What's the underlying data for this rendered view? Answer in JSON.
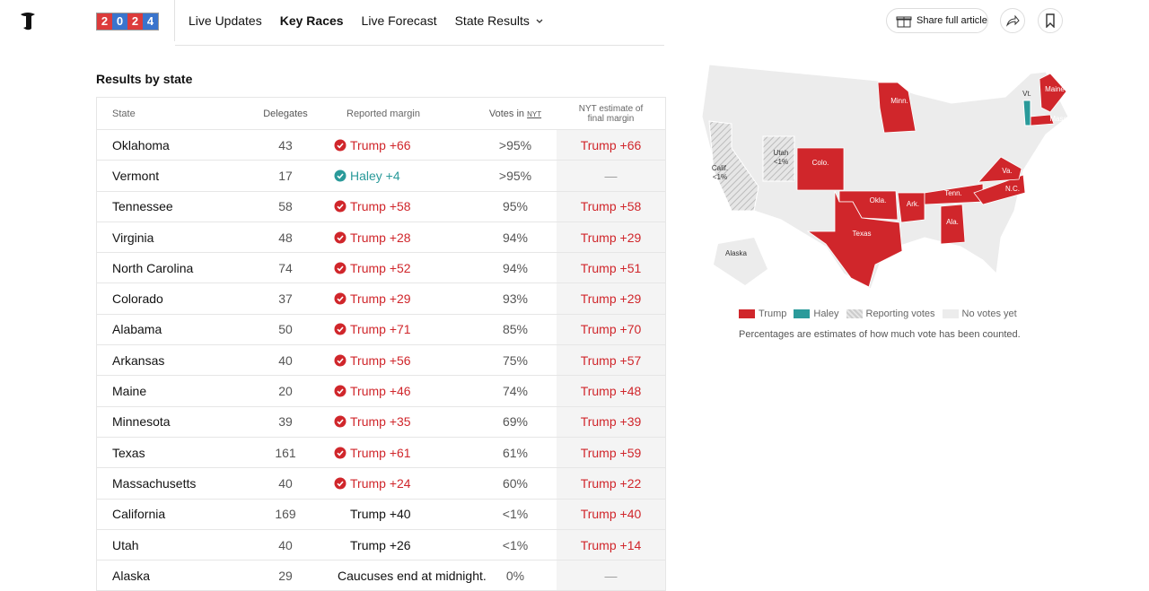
{
  "nav": {
    "year": [
      "2",
      "0",
      "2",
      "4"
    ],
    "links": [
      "Live Updates",
      "Key Races",
      "Live Forecast",
      "State Results"
    ],
    "share": "Share full article"
  },
  "section_title": "Results by state",
  "table": {
    "headers": {
      "state": "State",
      "delegates": "Delegates",
      "margin": "Reported margin",
      "votes": "Votes in",
      "votes_source": "NYT",
      "estimate": "NYT estimate of final margin"
    },
    "rows": [
      {
        "state": "Oklahoma",
        "delegates": "43",
        "margin": "Trump +66",
        "called": true,
        "leader": "trump",
        "votes": ">95%",
        "estimate": "Trump +66",
        "estimate_leader": "trump"
      },
      {
        "state": "Vermont",
        "delegates": "17",
        "margin": "Haley +4",
        "called": true,
        "leader": "haley",
        "votes": ">95%",
        "estimate": "—",
        "estimate_leader": null
      },
      {
        "state": "Tennessee",
        "delegates": "58",
        "margin": "Trump +58",
        "called": true,
        "leader": "trump",
        "votes": "95%",
        "estimate": "Trump +58",
        "estimate_leader": "trump"
      },
      {
        "state": "Virginia",
        "delegates": "48",
        "margin": "Trump +28",
        "called": true,
        "leader": "trump",
        "votes": "94%",
        "estimate": "Trump +29",
        "estimate_leader": "trump"
      },
      {
        "state": "North Carolina",
        "delegates": "74",
        "margin": "Trump +52",
        "called": true,
        "leader": "trump",
        "votes": "94%",
        "estimate": "Trump +51",
        "estimate_leader": "trump"
      },
      {
        "state": "Colorado",
        "delegates": "37",
        "margin": "Trump +29",
        "called": true,
        "leader": "trump",
        "votes": "93%",
        "estimate": "Trump +29",
        "estimate_leader": "trump"
      },
      {
        "state": "Alabama",
        "delegates": "50",
        "margin": "Trump +71",
        "called": true,
        "leader": "trump",
        "votes": "85%",
        "estimate": "Trump +70",
        "estimate_leader": "trump"
      },
      {
        "state": "Arkansas",
        "delegates": "40",
        "margin": "Trump +56",
        "called": true,
        "leader": "trump",
        "votes": "75%",
        "estimate": "Trump +57",
        "estimate_leader": "trump"
      },
      {
        "state": "Maine",
        "delegates": "20",
        "margin": "Trump +46",
        "called": true,
        "leader": "trump",
        "votes": "74%",
        "estimate": "Trump +48",
        "estimate_leader": "trump"
      },
      {
        "state": "Minnesota",
        "delegates": "39",
        "margin": "Trump +35",
        "called": true,
        "leader": "trump",
        "votes": "69%",
        "estimate": "Trump +39",
        "estimate_leader": "trump"
      },
      {
        "state": "Texas",
        "delegates": "161",
        "margin": "Trump +61",
        "called": true,
        "leader": "trump",
        "votes": "61%",
        "estimate": "Trump +59",
        "estimate_leader": "trump"
      },
      {
        "state": "Massachusetts",
        "delegates": "40",
        "margin": "Trump +24",
        "called": true,
        "leader": "trump",
        "votes": "60%",
        "estimate": "Trump +22",
        "estimate_leader": "trump"
      },
      {
        "state": "California",
        "delegates": "169",
        "margin": "Trump +40",
        "called": false,
        "leader": "trump",
        "votes": "<1%",
        "estimate": "Trump +40",
        "estimate_leader": "trump"
      },
      {
        "state": "Utah",
        "delegates": "40",
        "margin": "Trump +26",
        "called": false,
        "leader": "trump",
        "votes": "<1%",
        "estimate": "Trump +14",
        "estimate_leader": "trump"
      },
      {
        "state": "Alaska",
        "delegates": "29",
        "margin": "Caucuses end at midnight.",
        "called": false,
        "leader": null,
        "votes": "0%",
        "estimate": "—",
        "estimate_leader": null
      }
    ]
  },
  "map": {
    "labels": [
      {
        "text": "Minn.",
        "status": "trump"
      },
      {
        "text": "Maine",
        "status": "trump"
      },
      {
        "text": "Vt.",
        "status": "haley"
      },
      {
        "text": "Mass.",
        "status": "trump"
      },
      {
        "text": "Calif. <1%",
        "status": "reporting"
      },
      {
        "text": "Utah <1%",
        "status": "reporting"
      },
      {
        "text": "Colo.",
        "status": "trump"
      },
      {
        "text": "Okla.",
        "status": "trump"
      },
      {
        "text": "Ark.",
        "status": "trump"
      },
      {
        "text": "Tenn.",
        "status": "trump"
      },
      {
        "text": "Va.",
        "status": "trump"
      },
      {
        "text": "N.C.",
        "status": "trump"
      },
      {
        "text": "Ala.",
        "status": "trump"
      },
      {
        "text": "Texas",
        "status": "trump"
      },
      {
        "text": "Alaska",
        "status": "none"
      }
    ],
    "legend": [
      {
        "label": "Trump",
        "status": "trump"
      },
      {
        "label": "Haley",
        "status": "haley"
      },
      {
        "label": "Reporting votes",
        "status": "reporting"
      },
      {
        "label": "No votes yet",
        "status": "none"
      }
    ],
    "note": "Percentages are estimates of how much vote has been counted."
  }
}
